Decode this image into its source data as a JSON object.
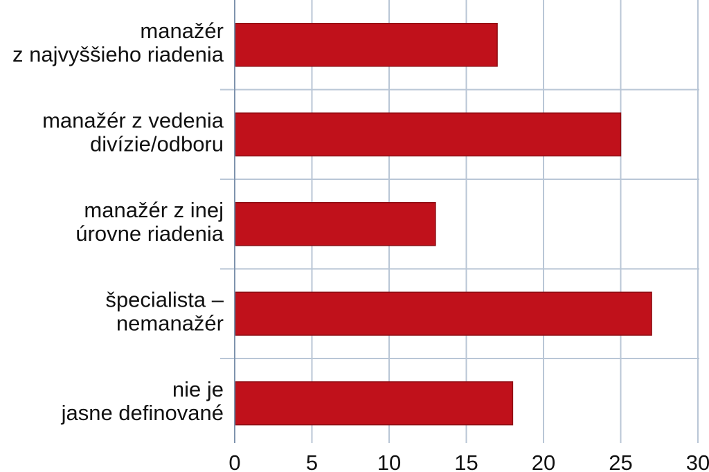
{
  "chart_data": {
    "type": "bar",
    "orientation": "horizontal",
    "categories": [
      [
        "manažér",
        "z najvyššieho riadenia"
      ],
      [
        "manažér z vedenia",
        "divízie/odboru"
      ],
      [
        "manažér z inej",
        "úrovne riadenia"
      ],
      [
        "špecialista –",
        "nemanažér"
      ],
      [
        "nie je",
        "jasne definované"
      ]
    ],
    "values": [
      17,
      25,
      13,
      27,
      18
    ],
    "xlim": [
      0,
      30
    ],
    "xticks": [
      "0",
      "5",
      "10",
      "15",
      "20",
      "25",
      "30"
    ],
    "grid": true,
    "legend": "none",
    "colors": {
      "bar": "#c0111b",
      "bar_edge": "#8e0c12",
      "grid": "#b9c6d6",
      "axis": "#7f93ad"
    }
  }
}
